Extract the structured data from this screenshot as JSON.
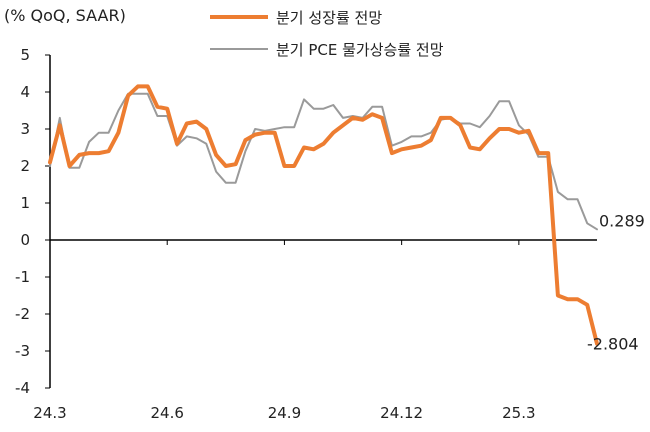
{
  "chart_data": {
    "type": "line",
    "unit_label": "(% QoQ, SAAR)",
    "ylim": [
      -4,
      5
    ],
    "yticks": [
      5,
      4,
      3,
      2,
      1,
      0,
      -1,
      -2,
      -3,
      -4
    ],
    "x_tick_labels": [
      "24.3",
      "24.6",
      "24.9",
      "24.12",
      "25.3"
    ],
    "x_tick_index": [
      0,
      12,
      24,
      36,
      48
    ],
    "grid": false,
    "legend_position": "top",
    "series": [
      {
        "name": "분기 성장률 전망",
        "color": "#ED7D31",
        "values": [
          2.1,
          3.1,
          2.0,
          2.3,
          2.35,
          2.35,
          2.4,
          2.9,
          3.9,
          4.15,
          4.15,
          3.6,
          3.55,
          2.6,
          3.15,
          3.2,
          3.0,
          2.3,
          2.0,
          2.05,
          2.7,
          2.85,
          2.9,
          2.9,
          2.0,
          2.0,
          2.5,
          2.45,
          2.6,
          2.9,
          3.1,
          3.3,
          3.25,
          3.4,
          3.3,
          2.35,
          2.45,
          2.5,
          2.55,
          2.7,
          3.3,
          3.3,
          3.1,
          2.5,
          2.45,
          2.75,
          3.0,
          3.0,
          2.9,
          2.95,
          2.35,
          2.35,
          -1.5,
          -1.6,
          -1.6,
          -1.75,
          -2.804
        ],
        "end_label": "-2.804"
      },
      {
        "name": "분기 PCE 물가상승률 전망",
        "color": "#9a9a9a",
        "values": [
          2.0,
          3.3,
          1.95,
          1.95,
          2.65,
          2.9,
          2.9,
          3.5,
          3.95,
          3.95,
          3.95,
          3.35,
          3.35,
          2.55,
          2.8,
          2.75,
          2.6,
          1.85,
          1.55,
          1.55,
          2.4,
          3.0,
          2.95,
          3.0,
          3.05,
          3.05,
          3.8,
          3.55,
          3.55,
          3.65,
          3.3,
          3.35,
          3.3,
          3.6,
          3.6,
          2.55,
          2.65,
          2.8,
          2.8,
          2.9,
          3.25,
          3.3,
          3.15,
          3.15,
          3.05,
          3.35,
          3.75,
          3.75,
          3.1,
          2.85,
          2.25,
          2.25,
          1.3,
          1.1,
          1.1,
          0.45,
          0.289
        ],
        "end_label": "0.289"
      }
    ]
  }
}
